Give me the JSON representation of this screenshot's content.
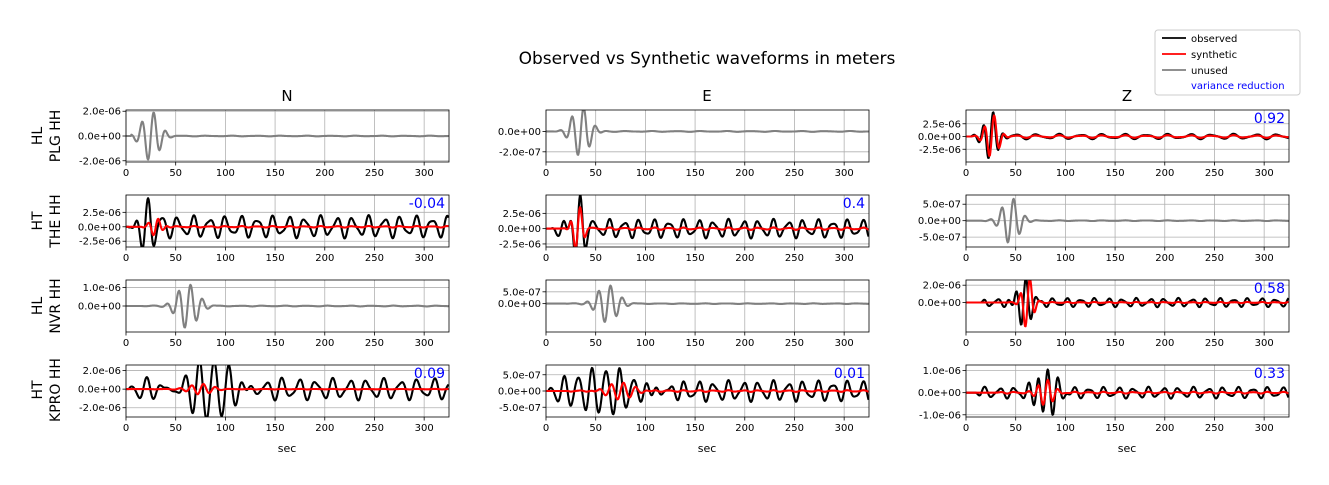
{
  "chart_data": {
    "type": "line",
    "title": "Observed vs Synthetic waveforms in meters",
    "xlabel": "sec",
    "xlim": [
      0,
      325
    ],
    "xticks": [
      0,
      50,
      100,
      150,
      200,
      250,
      300
    ],
    "grid": true,
    "columns": [
      "N",
      "E",
      "Z"
    ],
    "legend": {
      "placement": "top-right",
      "entries": [
        {
          "name": "observed",
          "color": "#000000"
        },
        {
          "name": "synthetic",
          "color": "#ff0000"
        },
        {
          "name": "unused",
          "color": "#808080"
        },
        {
          "name": "variance reduction",
          "color": "#0000ff"
        }
      ]
    },
    "rows": [
      {
        "network": "HL",
        "station": "PLG HH",
        "panels": [
          {
            "column": "N",
            "used": false,
            "variance_reduction": null,
            "ylim": [
              -2.1e-06,
              2.1e-06
            ],
            "yticks": [
              2e-06,
              0,
              -2e-06
            ],
            "ytick_labels": [
              "2.0e-06",
              "0.0e+00",
              "-2.0e-06"
            ],
            "signal": {
              "amp": 2e-06,
              "start": 5,
              "center": 25,
              "width": 12,
              "period": 12,
              "coda": 2e-08,
              "coda_period": 25
            }
          },
          {
            "column": "E",
            "used": false,
            "variance_reduction": null,
            "ylim": [
              -3e-07,
              2.1e-07
            ],
            "yticks": [
              0,
              -2e-07
            ],
            "ytick_labels": [
              "0.0e+00",
              "-2.0e-07"
            ],
            "signal": {
              "amp": 2.5e-07,
              "start": 5,
              "center": 35,
              "width": 12,
              "period": 12,
              "coda": 3e-09,
              "coda_period": 25
            }
          },
          {
            "column": "Z",
            "used": true,
            "variance_reduction": "0.92",
            "ylim": [
              -5e-06,
              5.2e-06
            ],
            "yticks": [
              2.5e-06,
              0,
              -2.5e-06
            ],
            "ytick_labels": [
              "2.5e-06",
              "0.0e+00",
              "-2.5e-06"
            ],
            "signal": {
              "amp": 4.5e-06,
              "start": 5,
              "center": 25,
              "width": 10,
              "period": 10,
              "coda": 4e-07,
              "coda_period": 22
            },
            "synthetic": {
              "amp": 4.2e-06,
              "start": 5,
              "center": 26,
              "width": 9,
              "period": 10,
              "coda": 2e-07,
              "coda_period": 22
            }
          }
        ]
      },
      {
        "network": "HT",
        "station": "THE HH",
        "panels": [
          {
            "column": "N",
            "used": true,
            "variance_reduction": "-0.04",
            "ylim": [
              -3.5e-06,
              5.5e-06
            ],
            "yticks": [
              2.5e-06,
              0,
              -2.5e-06
            ],
            "ytick_labels": [
              "2.5e-06",
              "0.0e+00",
              "-2.5e-06"
            ],
            "signal": {
              "amp": 4.5e-06,
              "start": 3,
              "center": 20,
              "width": 10,
              "period": 12,
              "coda": 1.5e-06,
              "coda_period": 16
            },
            "synthetic": {
              "amp": 1.5e-06,
              "start": 15,
              "center": 30,
              "width": 8,
              "period": 10,
              "coda": 1e-07,
              "coda_period": 16
            }
          },
          {
            "column": "E",
            "used": true,
            "variance_reduction": "0.4",
            "ylim": [
              -3e-06,
              5.5e-06
            ],
            "yticks": [
              2.5e-06,
              0,
              -2.5e-06
            ],
            "ytick_labels": [
              "2.5e-06",
              "0.0e+00",
              "-2.5e-06"
            ],
            "signal": {
              "amp": 4.8e-06,
              "start": 5,
              "center": 32,
              "width": 9,
              "period": 10,
              "coda": 1.2e-06,
              "coda_period": 15
            },
            "synthetic": {
              "amp": 3.8e-06,
              "start": 15,
              "center": 32,
              "width": 7,
              "period": 10,
              "coda": 1.5e-07,
              "coda_period": 15
            }
          },
          {
            "column": "Z",
            "used": false,
            "variance_reduction": null,
            "ylim": [
              -8e-07,
              7.8e-07
            ],
            "yticks": [
              5e-07,
              0,
              -5e-07
            ],
            "ytick_labels": [
              "5.0e-07",
              "0.0e+00",
              "-5.0e-07"
            ],
            "signal": {
              "amp": 7e-07,
              "start": 15,
              "center": 45,
              "width": 12,
              "period": 12,
              "coda": 8e-09,
              "coda_period": 22
            }
          }
        ]
      },
      {
        "network": "HL",
        "station": "NVR HH",
        "panels": [
          {
            "column": "N",
            "used": false,
            "variance_reduction": null,
            "ylim": [
              -1.4e-06,
              1.4e-06
            ],
            "yticks": [
              1e-06,
              0
            ],
            "ytick_labels": [
              "1.0e-06",
              "0.0e+00"
            ],
            "signal": {
              "amp": 1.2e-06,
              "start": 15,
              "center": 62,
              "width": 14,
              "period": 12,
              "coda": 1.5e-08,
              "coda_period": 22
            }
          },
          {
            "column": "E",
            "used": false,
            "variance_reduction": null,
            "ylim": [
              -1.2e-06,
              1e-06
            ],
            "yticks": [
              5e-07,
              0
            ],
            "ytick_labels": [
              "5.0e-07",
              "0.0e+00"
            ],
            "signal": {
              "amp": 8e-07,
              "start": 20,
              "center": 62,
              "width": 14,
              "period": 12,
              "coda": 1e-08,
              "coda_period": 22
            }
          },
          {
            "column": "Z",
            "used": true,
            "variance_reduction": "0.58",
            "ylim": [
              -3.4e-06,
              2.6e-06
            ],
            "yticks": [
              2e-06,
              0
            ],
            "ytick_labels": [
              "2.0e-06",
              "0.0e+00"
            ],
            "signal": {
              "amp": 2.5e-06,
              "start": 15,
              "center": 58,
              "width": 10,
              "period": 10,
              "coda": 4e-07,
              "coda_period": 14
            },
            "synthetic": {
              "amp": 3.2e-06,
              "start": 40,
              "center": 62,
              "width": 7,
              "period": 10,
              "coda": 5e-08,
              "coda_period": 14
            }
          }
        ]
      },
      {
        "network": "HT",
        "station": "KPRO HH",
        "panels": [
          {
            "column": "N",
            "used": true,
            "variance_reduction": "0.09",
            "ylim": [
              -3e-06,
              2.6e-06
            ],
            "yticks": [
              2e-06,
              0,
              -2e-06
            ],
            "ytick_labels": [
              "2.0e-06",
              "0.0e+00",
              "-2.0e-06"
            ],
            "signal": {
              "amp": 2.5e-06,
              "start": 3,
              "center": 85,
              "width": 40,
              "period": 14,
              "coda": 9e-07,
              "coda_period": 17
            },
            "synthetic": {
              "amp": 6e-07,
              "start": 25,
              "center": 75,
              "width": 15,
              "period": 12,
              "coda": 2e-08,
              "coda_period": 17
            }
          },
          {
            "column": "E",
            "used": true,
            "variance_reduction": "0.01",
            "ylim": [
              -8e-07,
              8e-07
            ],
            "yticks": [
              5e-07,
              0,
              -5e-07
            ],
            "ytick_labels": [
              "5.0e-07",
              "0.0e+00",
              "-5.0e-07"
            ],
            "signal": {
              "amp": 7.5e-07,
              "start": 3,
              "center": 70,
              "width": 40,
              "period": 14,
              "coda": 2.5e-07,
              "coda_period": 15
            },
            "synthetic": {
              "amp": 2.5e-07,
              "start": 20,
              "center": 75,
              "width": 18,
              "period": 12,
              "coda": 2e-08,
              "coda_period": 15
            }
          },
          {
            "column": "Z",
            "used": true,
            "variance_reduction": "0.33",
            "ylim": [
              -1.1e-06,
              1.25e-06
            ],
            "yticks": [
              1e-06,
              0,
              -1e-06
            ],
            "ytick_labels": [
              "1.0e-06",
              "0.0e+00",
              "-1.0e-06"
            ],
            "signal": {
              "amp": 1e-06,
              "start": 10,
              "center": 80,
              "width": 14,
              "period": 10,
              "coda": 2e-07,
              "coda_period": 15
            },
            "synthetic": {
              "amp": 6e-07,
              "start": 30,
              "center": 80,
              "width": 10,
              "period": 10,
              "coda": 3e-08,
              "coda_period": 15
            }
          }
        ]
      }
    ]
  }
}
